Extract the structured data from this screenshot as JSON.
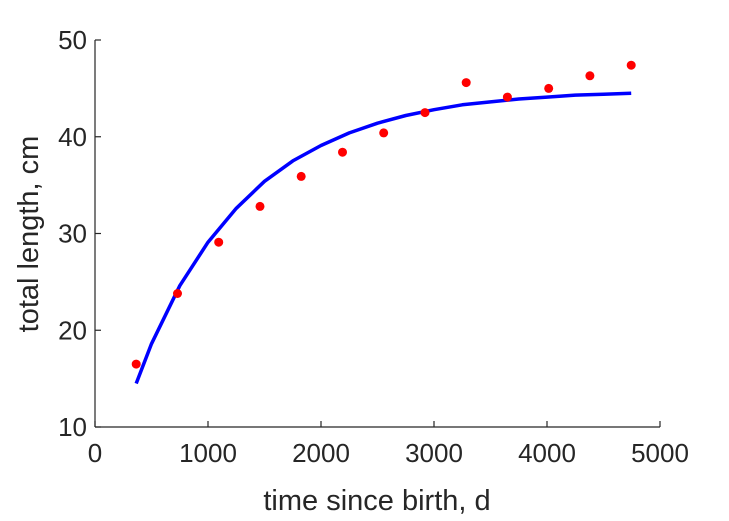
{
  "chart_data": {
    "type": "scatter",
    "xlabel": "time since birth, d",
    "ylabel": "total length, cm",
    "xlim": [
      0,
      5000
    ],
    "ylim": [
      10,
      50
    ],
    "xticks": [
      0,
      1000,
      2000,
      3000,
      4000,
      5000
    ],
    "yticks": [
      10,
      20,
      30,
      40,
      50
    ],
    "grid": false,
    "colors": {
      "points": "#ff0000",
      "line": "#0000ff",
      "axis": "#262626"
    },
    "series": [
      {
        "kind": "points",
        "x": [
          365,
          730,
          1095,
          1460,
          1825,
          2190,
          2555,
          2920,
          3285,
          3650,
          4015,
          4380,
          4745
        ],
        "y": [
          16.5,
          23.8,
          29.1,
          32.8,
          35.9,
          38.4,
          40.4,
          42.5,
          45.6,
          44.1,
          45.0,
          46.3,
          47.4
        ]
      },
      {
        "kind": "line",
        "x": [
          365,
          500,
          750,
          1000,
          1250,
          1500,
          1750,
          2000,
          2250,
          2500,
          2750,
          3000,
          3250,
          3500,
          3750,
          4000,
          4250,
          4500,
          4745
        ],
        "y": [
          14.5,
          18.6,
          24.6,
          29.1,
          32.6,
          35.4,
          37.5,
          39.1,
          40.4,
          41.4,
          42.2,
          42.8,
          43.3,
          43.6,
          43.9,
          44.1,
          44.3,
          44.4,
          44.5
        ]
      }
    ]
  }
}
